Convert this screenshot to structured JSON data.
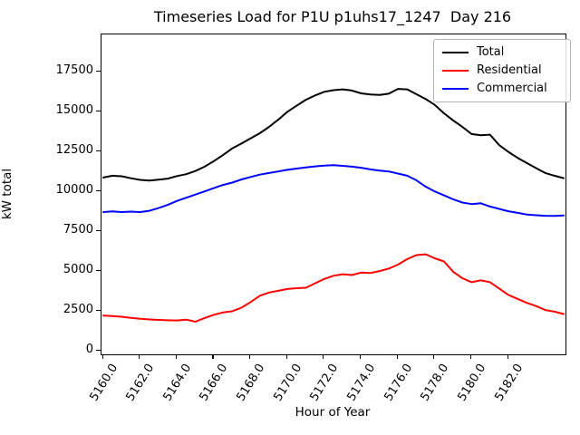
{
  "chart_data": {
    "type": "line",
    "title": "Timeseries Load for P1U p1uhs17_1247  Day 216",
    "xlabel": "Hour of Year",
    "ylabel": "kW total",
    "xlim": [
      5159.9,
      5185.1
    ],
    "ylim": [
      -230,
      19850
    ],
    "grid": false,
    "legend_position": "upper right",
    "x_ticks": [
      {
        "value": 5160,
        "label": "5160.0"
      },
      {
        "value": 5162,
        "label": "5162.0"
      },
      {
        "value": 5164,
        "label": "5164.0"
      },
      {
        "value": 5166,
        "label": "5166.0"
      },
      {
        "value": 5168,
        "label": "5168.0"
      },
      {
        "value": 5170,
        "label": "5170.0"
      },
      {
        "value": 5172,
        "label": "5172.0"
      },
      {
        "value": 5174,
        "label": "5174.0"
      },
      {
        "value": 5176,
        "label": "5176.0"
      },
      {
        "value": 5178,
        "label": "5178.0"
      },
      {
        "value": 5180,
        "label": "5180.0"
      },
      {
        "value": 5182,
        "label": "5182.0"
      }
    ],
    "y_ticks": [
      {
        "value": 0,
        "label": "0"
      },
      {
        "value": 2500,
        "label": "2500"
      },
      {
        "value": 5000,
        "label": "5000"
      },
      {
        "value": 7500,
        "label": "7500"
      },
      {
        "value": 10000,
        "label": "10000"
      },
      {
        "value": 12500,
        "label": "12500"
      },
      {
        "value": 15000,
        "label": "15000"
      },
      {
        "value": 17500,
        "label": "17500"
      }
    ],
    "x": [
      5160.0,
      5160.5,
      5161.0,
      5161.5,
      5162.0,
      5162.5,
      5163.0,
      5163.5,
      5164.0,
      5164.5,
      5165.0,
      5165.5,
      5166.0,
      5166.5,
      5167.0,
      5167.5,
      5168.0,
      5168.5,
      5169.0,
      5169.5,
      5170.0,
      5170.5,
      5171.0,
      5171.5,
      5172.0,
      5172.5,
      5173.0,
      5173.5,
      5174.0,
      5174.5,
      5175.0,
      5175.5,
      5176.0,
      5176.5,
      5177.0,
      5177.5,
      5178.0,
      5178.5,
      5179.0,
      5179.5,
      5180.0,
      5180.5,
      5181.0,
      5181.5,
      5182.0,
      5182.5,
      5183.0,
      5183.5,
      5184.0,
      5184.5,
      5185.0
    ],
    "series": [
      {
        "name": "Total",
        "color": "#000000",
        "values": [
          10870,
          10980,
          10950,
          10820,
          10720,
          10680,
          10740,
          10800,
          10960,
          11080,
          11280,
          11550,
          11900,
          12280,
          12700,
          13000,
          13330,
          13650,
          14050,
          14500,
          15000,
          15380,
          15750,
          16020,
          16250,
          16350,
          16400,
          16330,
          16150,
          16080,
          16050,
          16130,
          16430,
          16400,
          16100,
          15800,
          15430,
          14900,
          14450,
          14050,
          13600,
          13520,
          13560,
          12900,
          12480,
          12100,
          11780,
          11460,
          11150,
          10980,
          10830
        ]
      },
      {
        "name": "Residential",
        "color": "#ff0000",
        "values": [
          2200,
          2170,
          2130,
          2060,
          2000,
          1960,
          1930,
          1910,
          1900,
          1950,
          1820,
          2050,
          2250,
          2400,
          2480,
          2700,
          3050,
          3450,
          3650,
          3760,
          3870,
          3920,
          3950,
          4230,
          4500,
          4700,
          4800,
          4750,
          4900,
          4870,
          5000,
          5150,
          5400,
          5750,
          6000,
          6050,
          5800,
          5600,
          4950,
          4550,
          4300,
          4420,
          4300,
          3900,
          3500,
          3250,
          3000,
          2800,
          2550,
          2450,
          2300
        ]
      },
      {
        "name": "Commercial",
        "color": "#0000ff",
        "values": [
          8700,
          8740,
          8700,
          8730,
          8700,
          8780,
          8950,
          9150,
          9400,
          9600,
          9800,
          10000,
          10200,
          10400,
          10550,
          10750,
          10900,
          11050,
          11150,
          11250,
          11350,
          11430,
          11500,
          11570,
          11620,
          11650,
          11600,
          11550,
          11480,
          11380,
          11300,
          11250,
          11120,
          10980,
          10700,
          10300,
          10000,
          9750,
          9500,
          9300,
          9200,
          9250,
          9050,
          8900,
          8750,
          8650,
          8550,
          8500,
          8470,
          8460,
          8490
        ]
      }
    ]
  }
}
